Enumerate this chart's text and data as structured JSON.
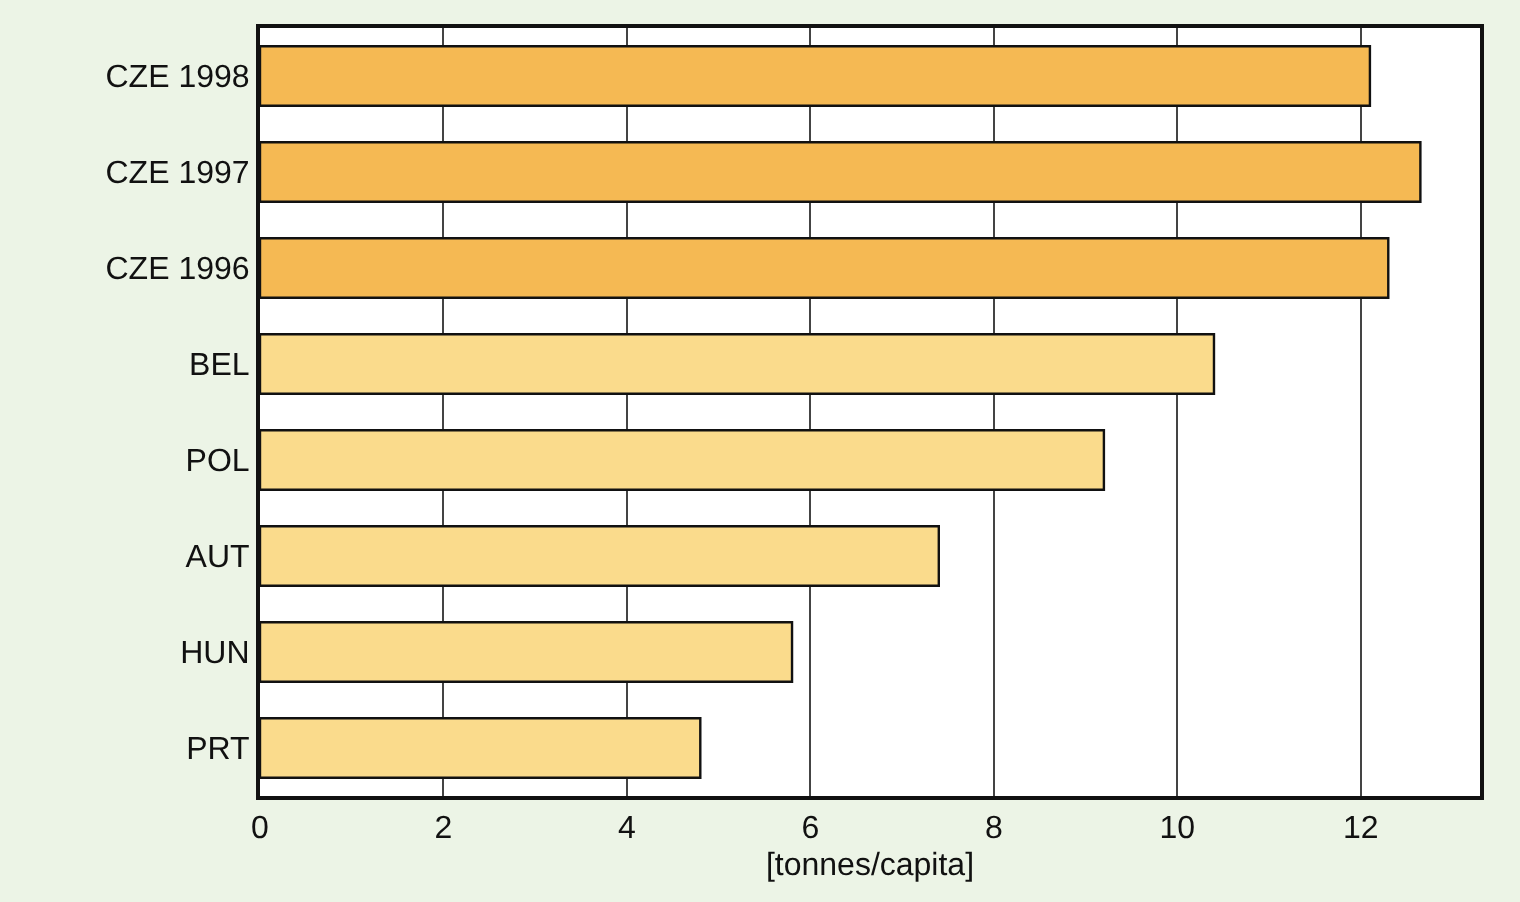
{
  "chart_data": {
    "type": "bar",
    "orientation": "horizontal",
    "xlabel": "[tonnes/capita]",
    "categories": [
      "CZE 1998",
      "CZE 1997",
      "CZE 1996",
      "BEL",
      "POL",
      "AUT",
      "HUN",
      "PRT"
    ],
    "values": [
      12.1,
      12.65,
      12.3,
      10.4,
      9.2,
      7.4,
      5.8,
      4.8
    ],
    "colors": [
      "#f5b953",
      "#f5b953",
      "#f5b953",
      "#fadb8c",
      "#fadb8c",
      "#fadb8c",
      "#fadb8c",
      "#fadb8c"
    ],
    "xlim": [
      0,
      13.3
    ],
    "xticks": [
      0,
      2,
      4,
      6,
      8,
      10,
      12
    ],
    "grid": "x"
  }
}
